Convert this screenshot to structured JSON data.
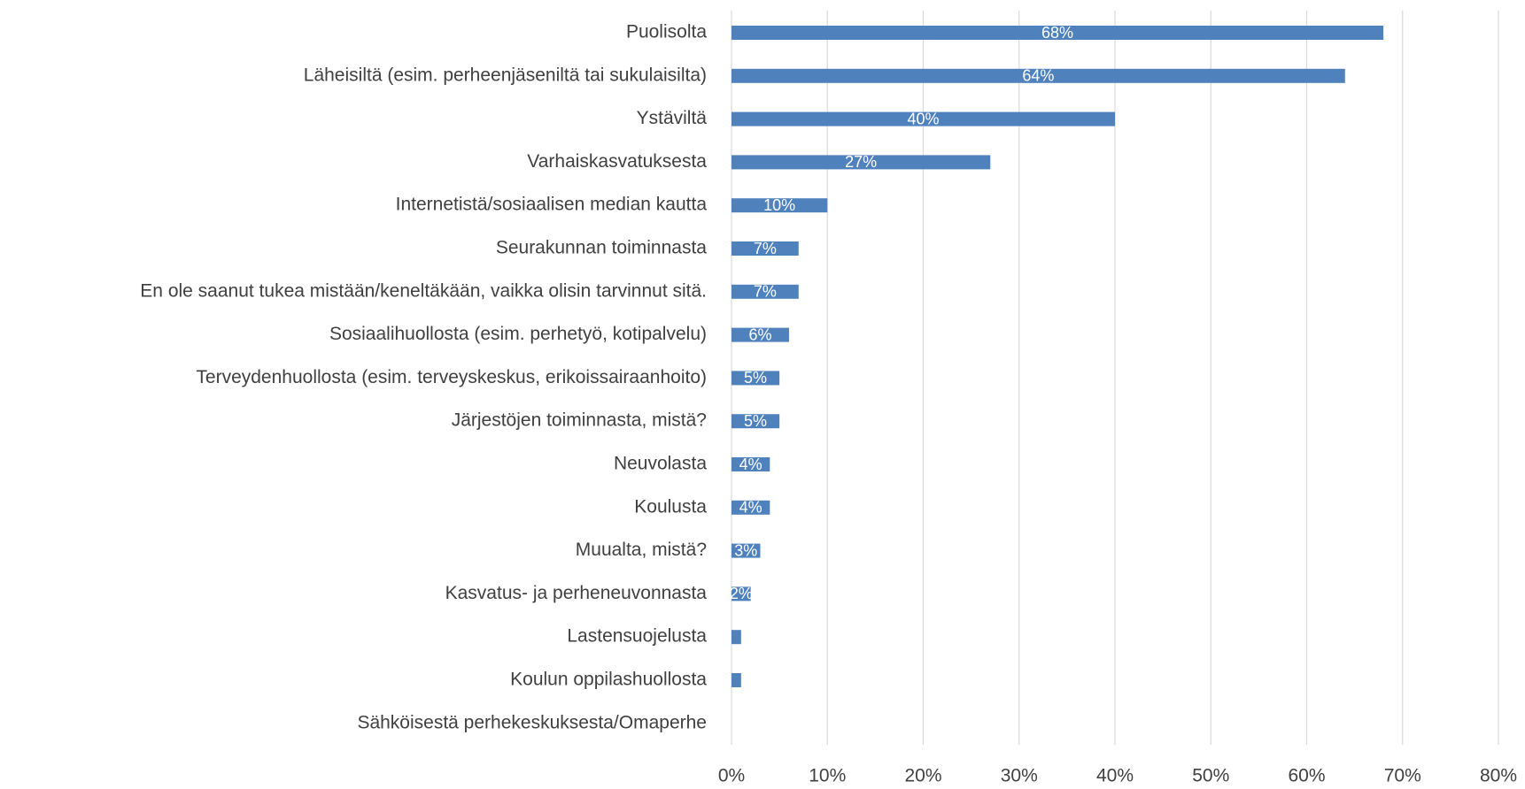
{
  "chart_data": {
    "type": "bar",
    "orientation": "horizontal",
    "categories": [
      "Puolisolta",
      "Läheisiltä (esim. perheenjäseniltä tai sukulaisilta)",
      "Ystäviltä",
      "Varhaiskasvatuksesta",
      "Internetistä/sosiaalisen median kautta",
      "Seurakunnan toiminnasta",
      "En ole saanut tukea mistään/keneltäkään, vaikka olisin tarvinnut sitä.",
      "Sosiaalihuollosta (esim. perhetyö, kotipalvelu)",
      "Terveydenhuollosta (esim. terveyskeskus, erikoissairaanhoito)",
      "Järjestöjen toiminnasta, mistä?",
      "Neuvolasta",
      "Koulusta",
      "Muualta, mistä?",
      "Kasvatus- ja perheneuvonnasta",
      "Lastensuojelusta",
      "Koulun oppilashuollosta",
      "Sähköisestä perhekeskuksesta/Omaperhe"
    ],
    "values": [
      68,
      64,
      40,
      27,
      10,
      7,
      7,
      6,
      5,
      5,
      4,
      4,
      3,
      2,
      1,
      1,
      0
    ],
    "value_labels": [
      "68%",
      "64%",
      "40%",
      "27%",
      "10%",
      "7%",
      "7%",
      "6%",
      "5%",
      "5%",
      "4%",
      "4%",
      "3%",
      "2%",
      null,
      null,
      null
    ],
    "color": "#4f81bd",
    "xlim": [
      0,
      80
    ],
    "xticks": [
      {
        "value": 0,
        "label": "0%"
      },
      {
        "value": 10,
        "label": "10%"
      },
      {
        "value": 20,
        "label": "20%"
      },
      {
        "value": 30,
        "label": "30%"
      },
      {
        "value": 40,
        "label": "40%"
      },
      {
        "value": 50,
        "label": "50%"
      },
      {
        "value": 60,
        "label": "60%"
      },
      {
        "value": 70,
        "label": "70%"
      },
      {
        "value": 80,
        "label": "80%"
      }
    ],
    "grid": true
  }
}
